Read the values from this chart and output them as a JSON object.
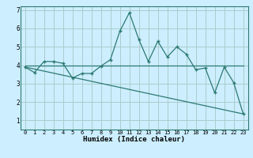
{
  "xlabel": "Humidex (Indice chaleur)",
  "bg_color": "#cceeff",
  "grid_color": "#aacccc",
  "line_color": "#2d7a72",
  "xlim": [
    -0.5,
    23.5
  ],
  "ylim": [
    0.5,
    7.2
  ],
  "xticks": [
    0,
    1,
    2,
    3,
    4,
    5,
    6,
    7,
    8,
    9,
    10,
    11,
    12,
    13,
    14,
    15,
    16,
    17,
    18,
    19,
    20,
    21,
    22,
    23
  ],
  "yticks": [
    1,
    2,
    3,
    4,
    5,
    6,
    7
  ],
  "series1_x": [
    0,
    1,
    2,
    3,
    4,
    5,
    6,
    7,
    8,
    9,
    10,
    11,
    12,
    13,
    14,
    15,
    16,
    17,
    18,
    19,
    20,
    21,
    22,
    23
  ],
  "series1_y": [
    3.9,
    3.6,
    4.2,
    4.2,
    4.1,
    3.3,
    3.55,
    3.55,
    3.95,
    4.3,
    5.85,
    6.85,
    5.4,
    4.2,
    5.3,
    4.45,
    5.0,
    4.6,
    3.75,
    3.85,
    2.5,
    3.9,
    3.05,
    1.35
  ],
  "series2_x": [
    0,
    23
  ],
  "series2_y": [
    4.0,
    4.0
  ],
  "series3_x": [
    0,
    23
  ],
  "series3_y": [
    3.9,
    1.35
  ]
}
